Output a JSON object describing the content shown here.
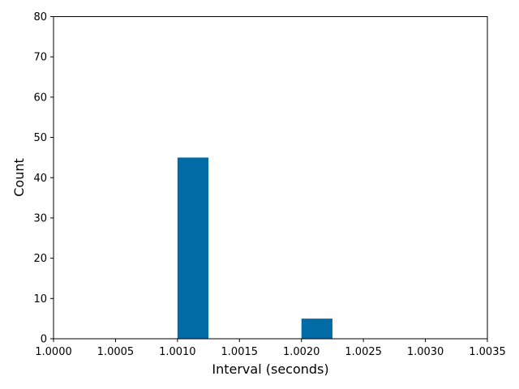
{
  "chart_data": {
    "type": "bar",
    "title": "",
    "xlabel": "Interval (seconds)",
    "ylabel": "Count",
    "xlim": [
      1.0,
      1.0035
    ],
    "ylim": [
      0,
      80
    ],
    "x_ticks": [
      "1.0000",
      "1.0005",
      "1.0010",
      "1.0015",
      "1.0020",
      "1.0025",
      "1.0030",
      "1.0035"
    ],
    "y_ticks": [
      "0",
      "10",
      "20",
      "30",
      "40",
      "50",
      "60",
      "70",
      "80"
    ],
    "bins": [
      {
        "x_start": 1.001,
        "x_end": 1.00125,
        "count": 45
      },
      {
        "x_start": 1.002,
        "x_end": 1.00225,
        "count": 5
      }
    ],
    "bar_color": "#006ba4",
    "grid": false
  }
}
